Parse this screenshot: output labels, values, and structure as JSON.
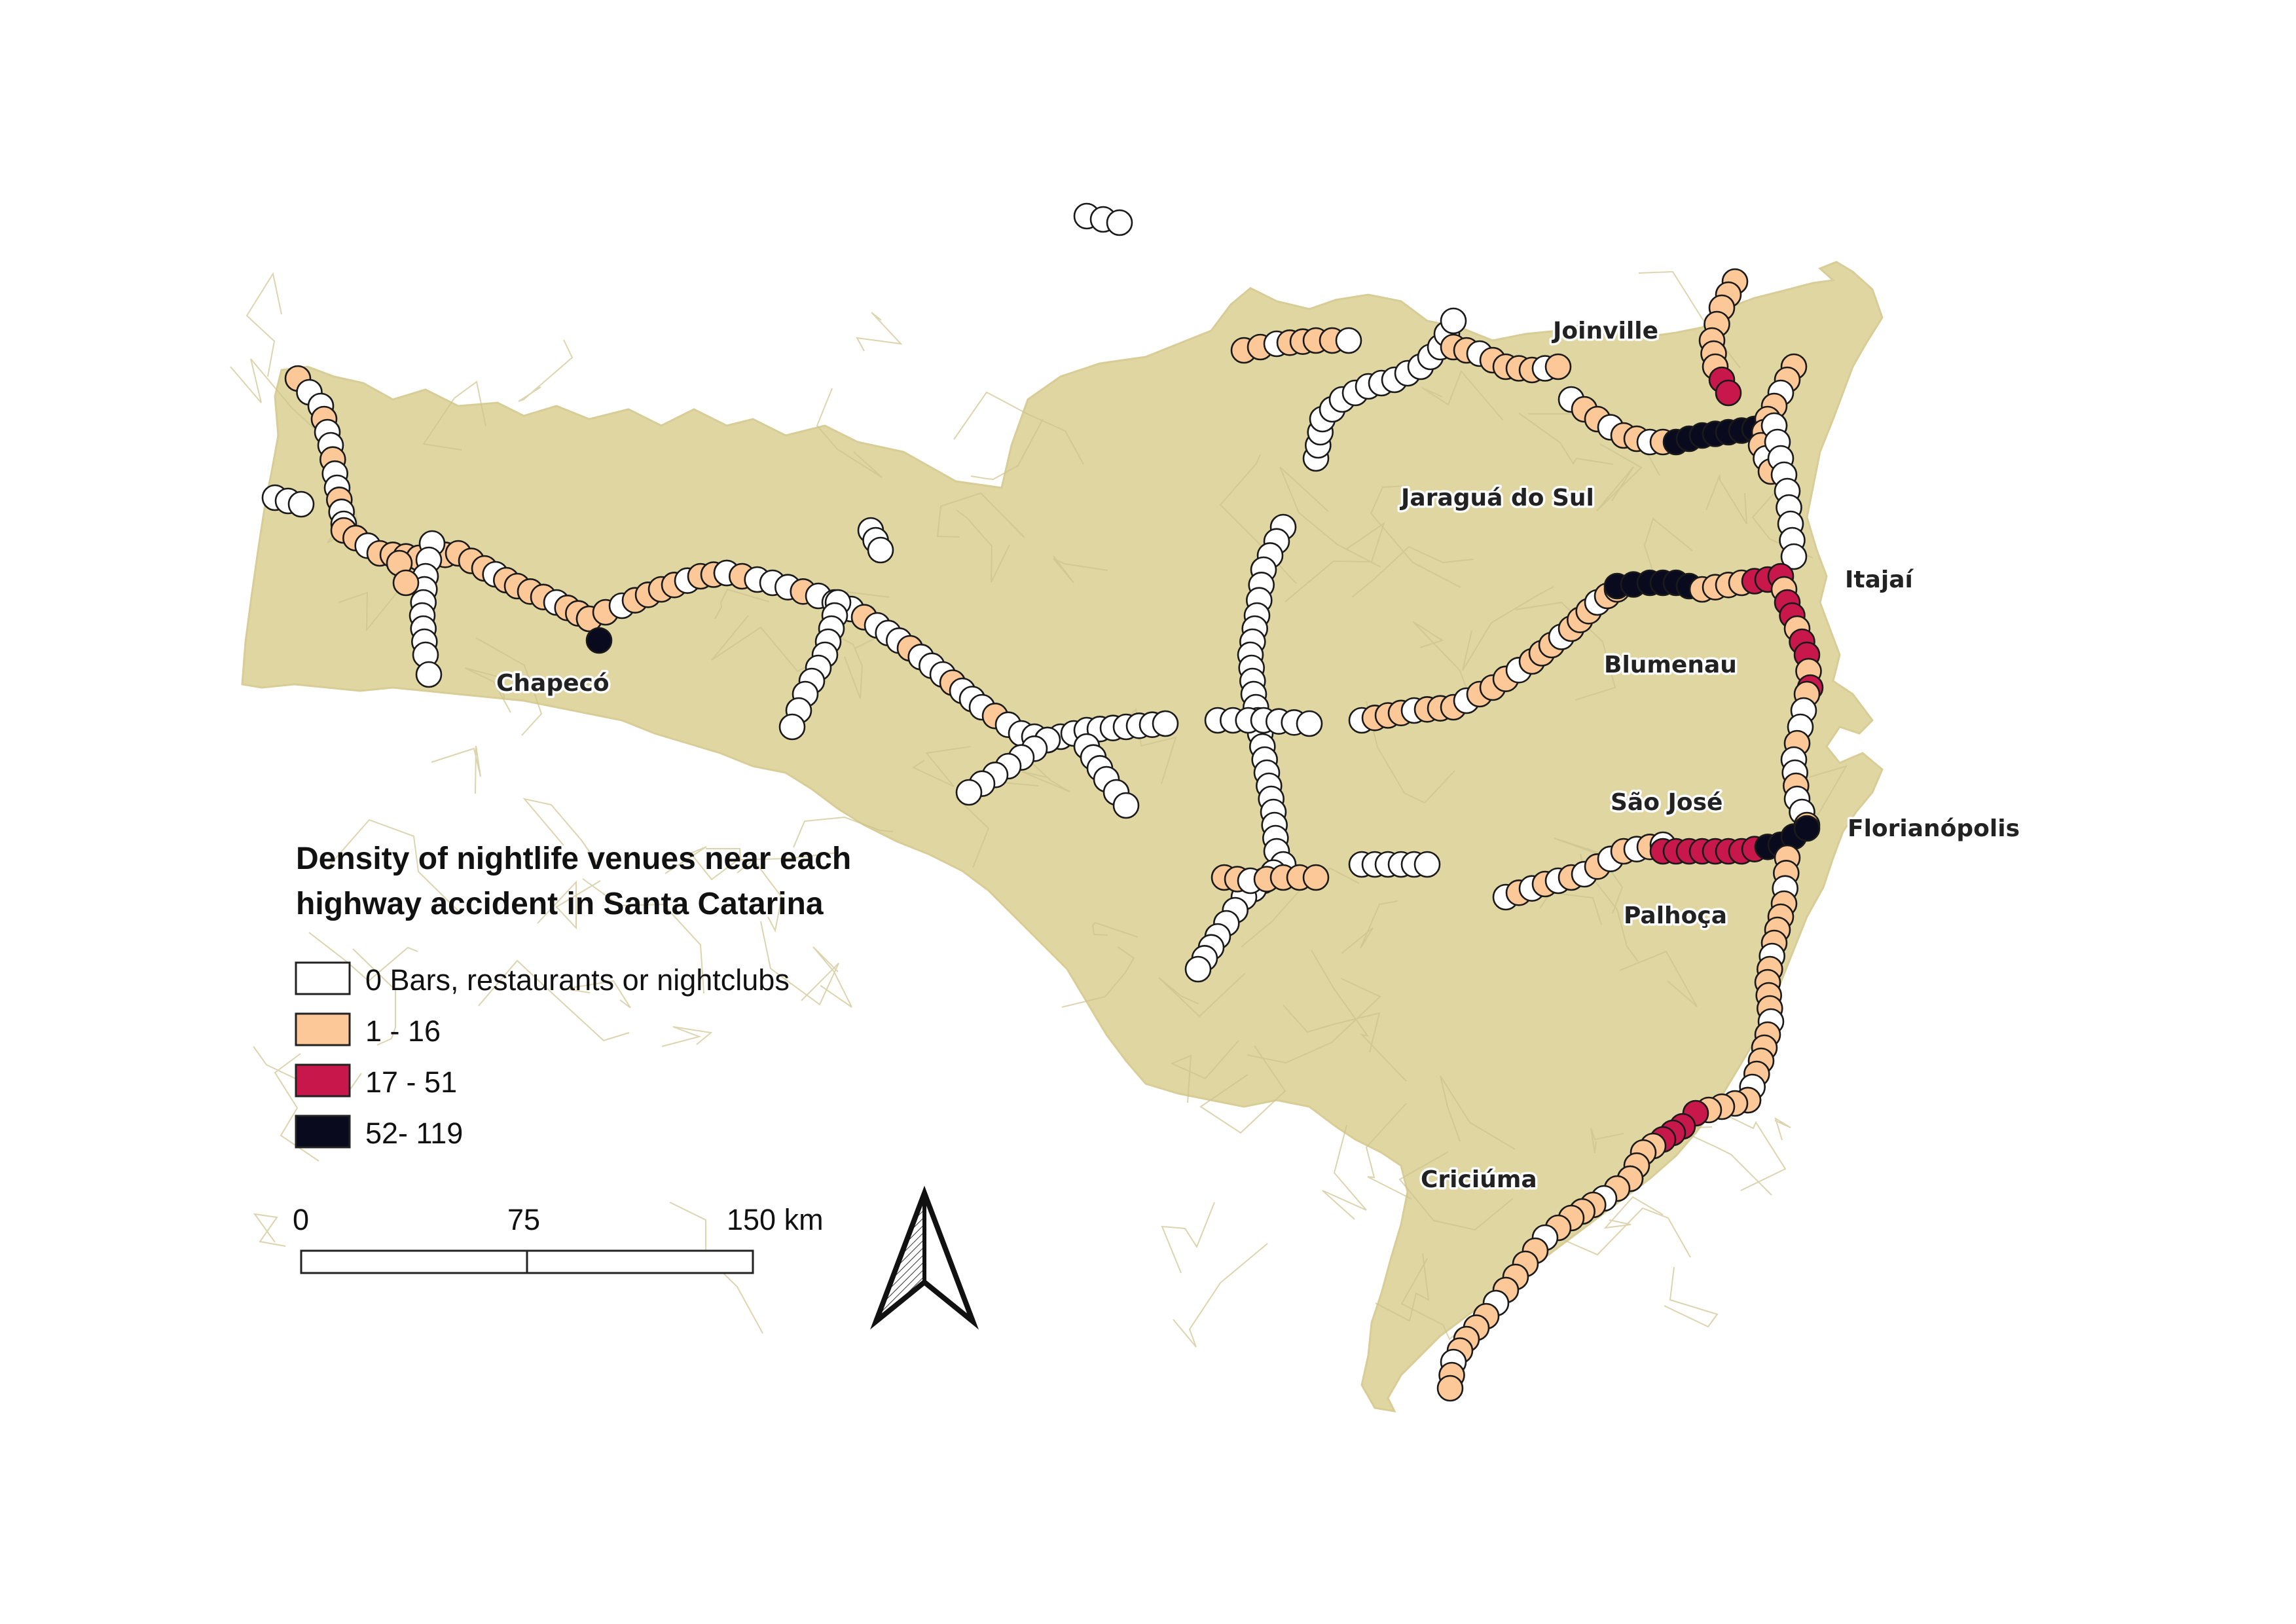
{
  "title_lines": [
    "Density of nightlife venues near each",
    "highway accident in Santa Catarina"
  ],
  "legend": [
    {
      "label": "0 Bars, restaurants or nightclubs",
      "color": "#ffffff"
    },
    {
      "label": "1 - 16",
      "color": "#fdc897"
    },
    {
      "label": "17 - 51",
      "color": "#c8174a"
    },
    {
      "label": "52- 119",
      "color": "#0a0a1e"
    }
  ],
  "cities": [
    "Joinville",
    "Jaraguá do Sul",
    "Itajaí",
    "Blumenau",
    "Chapecó",
    "São José",
    "Florianópolis",
    "Palhoça",
    "Criciúma"
  ],
  "scale_bar": {
    "ticks": [
      "0",
      "75",
      "150 km"
    ]
  },
  "colors": {
    "land": "#e0d6a2",
    "border": "#cdc38e"
  },
  "icons": [
    "north-arrow-icon"
  ]
}
